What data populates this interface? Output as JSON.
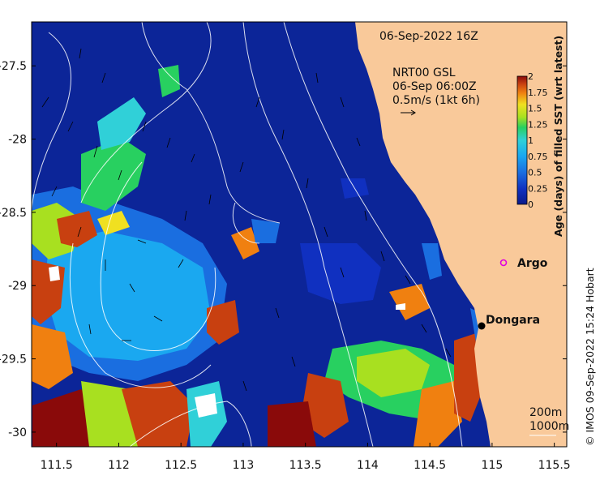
{
  "map": {
    "timestamp": "06-Sep-2022 16Z",
    "current_source_line1": "NRT00 GSL",
    "current_source_line2": "06-Sep 06:00Z",
    "vector_scale_label": "0.5m/s (1kt 6h)",
    "places": [
      {
        "name": "Argo",
        "lon": 114.95,
        "lat": -28.82,
        "marker": "magenta-circle"
      },
      {
        "name": "Dongara",
        "lon": 114.92,
        "lat": -29.26,
        "marker": "black-dot"
      }
    ],
    "contour_legend": [
      "200m",
      "1000m"
    ],
    "credit": "© IMOS 09-Sep-2022 15:24 Hobart",
    "x_axis": {
      "range": [
        111.3,
        115.6
      ],
      "ticks": [
        "111.5",
        "112",
        "112.5",
        "113",
        "113.5",
        "114",
        "114.5",
        "115",
        "115.5"
      ]
    },
    "y_axis": {
      "range": [
        -30.1,
        -27.2
      ],
      "ticks": [
        "-27.5",
        "-28",
        "-28.5",
        "-29",
        "-29.5",
        "-30"
      ]
    },
    "land_color": "#f9c99a",
    "colorbar": {
      "title": "Age (days) of filled SST (wrt latest)",
      "ticks": [
        "2",
        "1.75",
        "1.5",
        "1.25",
        "1",
        "0.75",
        "0.5",
        "0.25",
        "0"
      ],
      "range": [
        0,
        2
      ],
      "colors": [
        "#0a1a8a",
        "#1030c0",
        "#1a6ee0",
        "#1aa8f0",
        "#30d0d8",
        "#28d060",
        "#a8e020",
        "#f0e020",
        "#f08010",
        "#c84010",
        "#8a0a0a"
      ]
    }
  }
}
